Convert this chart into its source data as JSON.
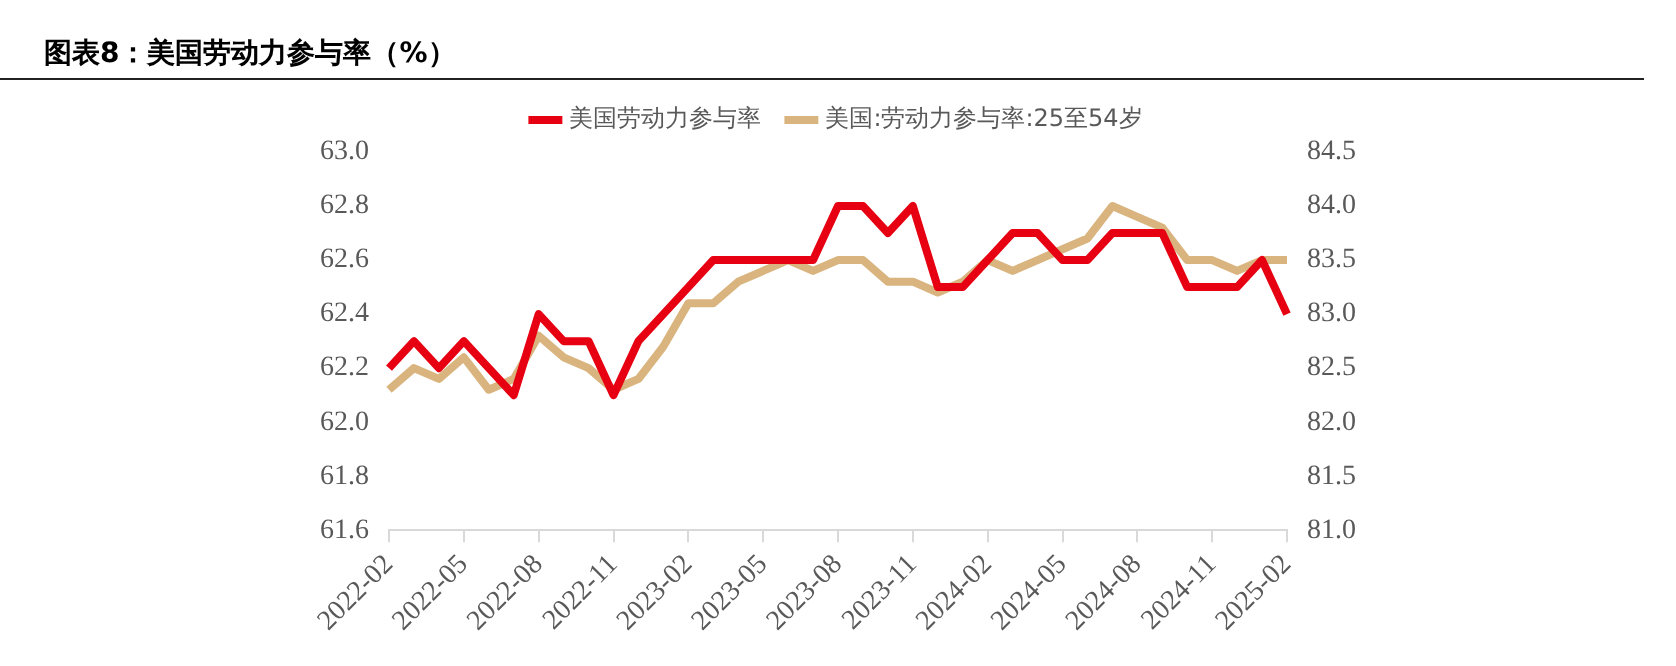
{
  "chart_data": {
    "type": "line",
    "title": "图表8：美国劳动力参与率（%）",
    "categories": [
      "2022-02",
      null,
      null,
      "2022-05",
      null,
      null,
      "2022-08",
      null,
      null,
      "2022-11",
      null,
      null,
      "2023-02",
      null,
      null,
      "2023-05",
      null,
      null,
      "2023-08",
      null,
      null,
      "2023-11",
      null,
      null,
      "2024-02",
      null,
      null,
      "2024-05",
      null,
      null,
      "2024-08",
      null,
      null,
      "2024-11",
      null,
      null,
      "2025-02"
    ],
    "series": [
      {
        "name": "美国劳动力参与率",
        "color": "#e60012",
        "values": [
          62.2,
          62.3,
          62.2,
          62.3,
          62.2,
          62.1,
          62.4,
          62.3,
          62.3,
          62.1,
          62.3,
          62.4,
          62.5,
          62.6,
          62.6,
          62.6,
          62.6,
          62.6,
          62.8,
          62.8,
          62.7,
          62.8,
          62.5,
          62.5,
          62.6,
          62.7,
          62.7,
          62.6,
          62.6,
          62.7,
          62.7,
          62.7,
          62.5,
          62.5,
          62.5,
          62.6,
          62.4
        ]
      },
      {
        "name": "美国:劳动力参与率:25至54岁",
        "color": "#d9b47e",
        "axis": "y2",
        "values": [
          82.3,
          82.5,
          82.4,
          82.6,
          82.3,
          82.4,
          82.8,
          82.6,
          82.5,
          82.3,
          82.4,
          82.7,
          83.1,
          83.1,
          83.3,
          83.4,
          83.5,
          83.4,
          83.5,
          83.5,
          83.3,
          83.3,
          83.2,
          83.3,
          83.5,
          83.4,
          83.5,
          83.6,
          83.7,
          84.0,
          83.9,
          83.8,
          83.5,
          83.5,
          83.4,
          83.5,
          83.5
        ]
      }
    ],
    "ylim": [
      61.6,
      63.0
    ],
    "yticks": [
      {
        "value": 61.6,
        "label": "61.6"
      },
      {
        "value": 61.8,
        "label": "61.8"
      },
      {
        "value": 62.0,
        "label": "62.0"
      },
      {
        "value": 62.2,
        "label": "62.2"
      },
      {
        "value": 62.4,
        "label": "62.4"
      },
      {
        "value": 62.6,
        "label": "62.6"
      },
      {
        "value": 62.8,
        "label": "62.8"
      },
      {
        "value": 63.0,
        "label": "63.0"
      }
    ],
    "y2lim": [
      81.0,
      84.5
    ],
    "y2ticks": [
      {
        "value": 81.0,
        "label": "81.0"
      },
      {
        "value": 81.5,
        "label": "81.5"
      },
      {
        "value": 82.0,
        "label": "82.0"
      },
      {
        "value": 82.5,
        "label": "82.5"
      },
      {
        "value": 83.0,
        "label": "83.0"
      },
      {
        "value": 83.5,
        "label": "83.5"
      },
      {
        "value": 84.0,
        "label": "84.0"
      },
      {
        "value": 84.5,
        "label": "84.5"
      }
    ],
    "grid": false,
    "legend": "top",
    "marker": "none",
    "line_style": "solid"
  }
}
